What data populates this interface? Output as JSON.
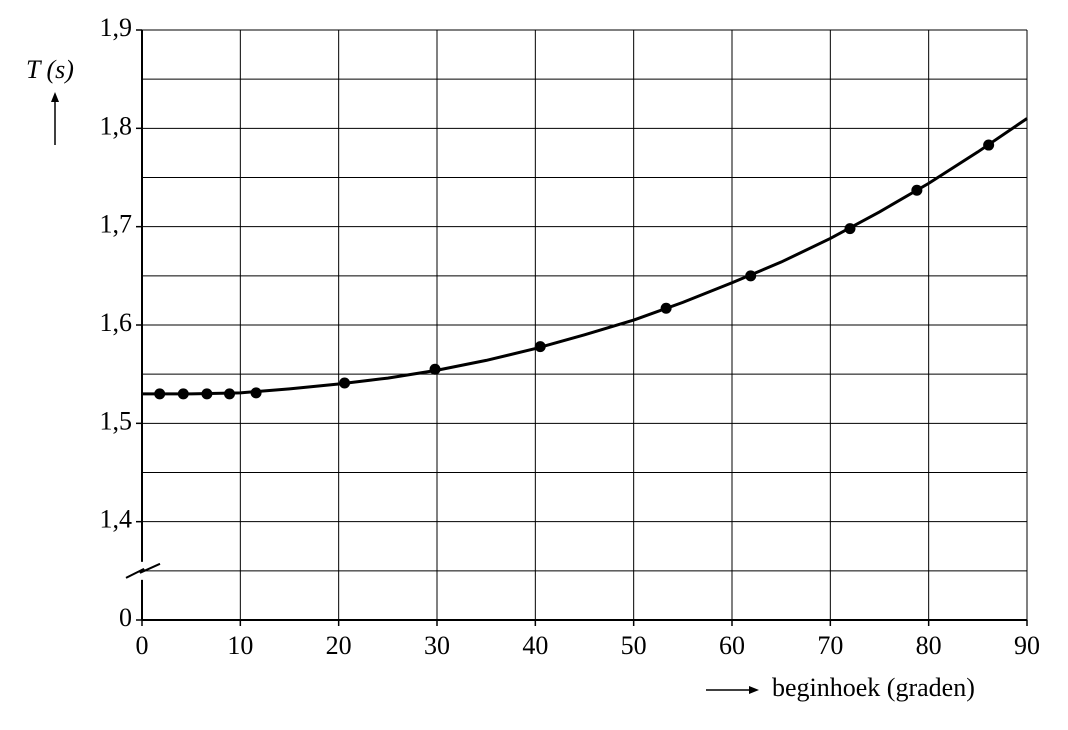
{
  "chart_data": {
    "type": "scatter",
    "ylabel": "T (s)",
    "xlabel": "beginhoek (graden)",
    "xlim": [
      0,
      90
    ],
    "xticks": [
      0,
      10,
      20,
      30,
      40,
      50,
      60,
      70,
      80,
      90
    ],
    "ylim": [
      0,
      1.9
    ],
    "yticks": [
      0,
      {
        "value": 1.4,
        "label": "1,4"
      },
      {
        "value": 1.5,
        "label": "1,5"
      },
      {
        "value": 1.6,
        "label": "1,6"
      },
      {
        "value": 1.7,
        "label": "1,7"
      },
      {
        "value": 1.8,
        "label": "1,8"
      },
      {
        "value": 1.9,
        "label": "1,9"
      }
    ],
    "axis_break": true,
    "grid": true,
    "series": [
      {
        "type": "scatter",
        "color": "#000000",
        "x": [
          1.8,
          4.2,
          6.6,
          8.9,
          11.6,
          20.6,
          29.8,
          40.5,
          53.3,
          61.9,
          72,
          78.8,
          86.1
        ],
        "values": [
          1.53,
          1.53,
          1.53,
          1.53,
          1.531,
          1.541,
          1.555,
          1.578,
          1.617,
          1.65,
          1.698,
          1.737,
          1.783
        ]
      },
      {
        "type": "line",
        "color": "#000000",
        "x": [
          0,
          5,
          10,
          15,
          20,
          25,
          30,
          35,
          40,
          45,
          50,
          55,
          60,
          65,
          70,
          75,
          80,
          85,
          90
        ],
        "values": [
          1.53,
          1.53,
          1.531,
          1.535,
          1.54,
          1.546,
          1.554,
          1.564,
          1.576,
          1.59,
          1.605,
          1.623,
          1.643,
          1.664,
          1.688,
          1.715,
          1.744,
          1.776,
          1.81
        ]
      }
    ]
  }
}
